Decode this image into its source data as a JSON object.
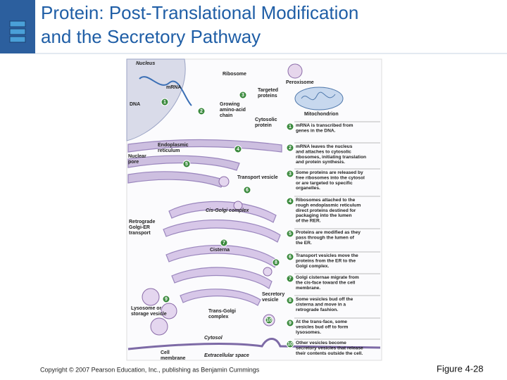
{
  "header": {
    "title": [
      "Protein: Post-Translational Modification",
      "and the Secretory Pathway"
    ]
  },
  "figure": {
    "labels": [
      [
        "Nucleus"
      ],
      [
        "mRNA"
      ],
      [
        "DNA"
      ],
      [
        "Ribosome"
      ],
      [
        "Peroxisome"
      ],
      [
        "Targeted",
        "proteins"
      ],
      [
        "Growing",
        "amino-acid",
        "chain"
      ],
      [
        "Cytosolic",
        "protein"
      ],
      [
        "Mitochondrion"
      ],
      [
        "Endoplasmic",
        "reticulum"
      ],
      [
        "Nuclear",
        "pore"
      ],
      [
        "Transport vesicle"
      ],
      [
        "Cis-Golgi complex"
      ],
      [
        "Retrograde",
        "Golgi-ER",
        "transport"
      ],
      [
        "Cisterna"
      ],
      [
        "Secretory",
        "vesicle"
      ],
      [
        "Lysosome or",
        "storage vesicle"
      ],
      [
        "Trans-Golgi",
        "complex"
      ],
      [
        "Cytosol"
      ],
      [
        "Cell",
        "membrane"
      ],
      [
        "Extracellular space"
      ]
    ],
    "steps": [
      {
        "number": "1",
        "lines": [
          "mRNA is transcribed from",
          "genes in the DNA."
        ]
      },
      {
        "number": "2",
        "lines": [
          "mRNA leaves the nucleus",
          "and attaches to cytosolic",
          "ribosomes, initiating translation",
          "and protein synthesis."
        ]
      },
      {
        "number": "3",
        "lines": [
          "Some proteins are released by",
          "free ribosomes into the cytosol",
          "or are targeted to specific",
          "organelles."
        ]
      },
      {
        "number": "4",
        "lines": [
          "Ribosomes attached to the",
          "rough endoplasmic reticulum",
          "direct proteins destined for",
          "packaging into the lumen",
          "of the RER."
        ]
      },
      {
        "number": "5",
        "lines": [
          "Proteins are modified as they",
          "pass through the lumen of",
          "the ER."
        ]
      },
      {
        "number": "6",
        "lines": [
          "Transport vesicles move the",
          "proteins from the ER to the",
          "Golgi complex."
        ]
      },
      {
        "number": "7",
        "lines": [
          "Golgi cisternae migrate from",
          "the cis-face toward the cell",
          "membrane."
        ]
      },
      {
        "number": "8",
        "lines": [
          "Some vesicles bud off the",
          "cisterna and move in a",
          "retrograde fashion."
        ]
      },
      {
        "number": "9",
        "lines": [
          "At the trans-face, some",
          "vesicles bud off to form",
          "lysosomes."
        ]
      },
      {
        "number": "10",
        "lines": [
          "Other vesicles become",
          "secretory vesicles that release",
          "their contents outside the cell."
        ]
      }
    ]
  },
  "footer": {
    "copyright": "Copyright © 2007 Pearson Education, Inc., publishing as Benjamin Cummings",
    "figure": "Figure 4-28"
  }
}
